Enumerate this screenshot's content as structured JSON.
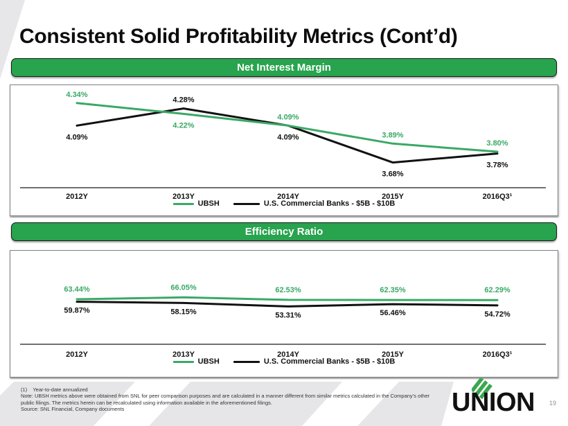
{
  "slide": {
    "title": "Consistent Solid Profitability Metrics (Cont’d)",
    "page_number": "19"
  },
  "logo": {
    "text": "UNION",
    "mark": "three-green-diagonal-stripes"
  },
  "colors": {
    "banner_green": "#28a34e",
    "series_green": "#3aa866",
    "series_black": "#111111",
    "background_stripe_gray": "#e6e6e8"
  },
  "footnotes": {
    "note1": "(1)    Year-to-date annualized",
    "note2": "Note: UBSH metrics above were obtained from SNL for peer comparison purposes and are calculated in a manner different from similar metrics calculated in the Company’s other public filings. The metrics herein can be recalculated using information available in the aforementioned filings.",
    "source": "Source: SNL Financial, Company documents"
  },
  "chart_data": [
    {
      "type": "line",
      "title": "Net Interest Margin",
      "categories": [
        "2012Y",
        "2013Y",
        "2014Y",
        "2015Y",
        "2016Q3¹"
      ],
      "series": [
        {
          "name": "UBSH",
          "color": "#3aa866",
          "values": [
            4.34,
            4.22,
            4.09,
            3.89,
            3.8
          ],
          "labels": [
            "4.34%",
            "4.22%",
            "4.09%",
            "3.89%",
            "3.80%"
          ]
        },
        {
          "name": "U.S. Commercial Banks - $5B - $10B",
          "color": "#111111",
          "values": [
            4.09,
            4.28,
            4.09,
            3.68,
            3.78
          ],
          "labels": [
            "4.09%",
            "4.28%",
            "4.09%",
            "3.68%",
            "3.78%"
          ]
        }
      ],
      "xlabel": "",
      "ylabel": "",
      "ylim": [
        3.4,
        4.5
      ],
      "grid": false,
      "legend_position": "bottom"
    },
    {
      "type": "line",
      "title": "Efficiency Ratio",
      "categories": [
        "2012Y",
        "2013Y",
        "2014Y",
        "2015Y",
        "2016Q3¹"
      ],
      "series": [
        {
          "name": "UBSH",
          "color": "#3aa866",
          "values": [
            63.44,
            66.05,
            62.53,
            62.35,
            62.29
          ],
          "labels": [
            "63.44%",
            "66.05%",
            "62.53%",
            "62.35%",
            "62.29%"
          ]
        },
        {
          "name": "U.S. Commercial Banks - $5B - $10B",
          "color": "#111111",
          "values": [
            59.87,
            58.15,
            53.31,
            56.46,
            54.72
          ],
          "labels": [
            "59.87%",
            "58.15%",
            "53.31%",
            "56.46%",
            "54.72%"
          ]
        }
      ],
      "xlabel": "",
      "ylabel": "",
      "ylim": [
        0,
        120
      ],
      "grid": false,
      "legend_position": "bottom"
    }
  ]
}
